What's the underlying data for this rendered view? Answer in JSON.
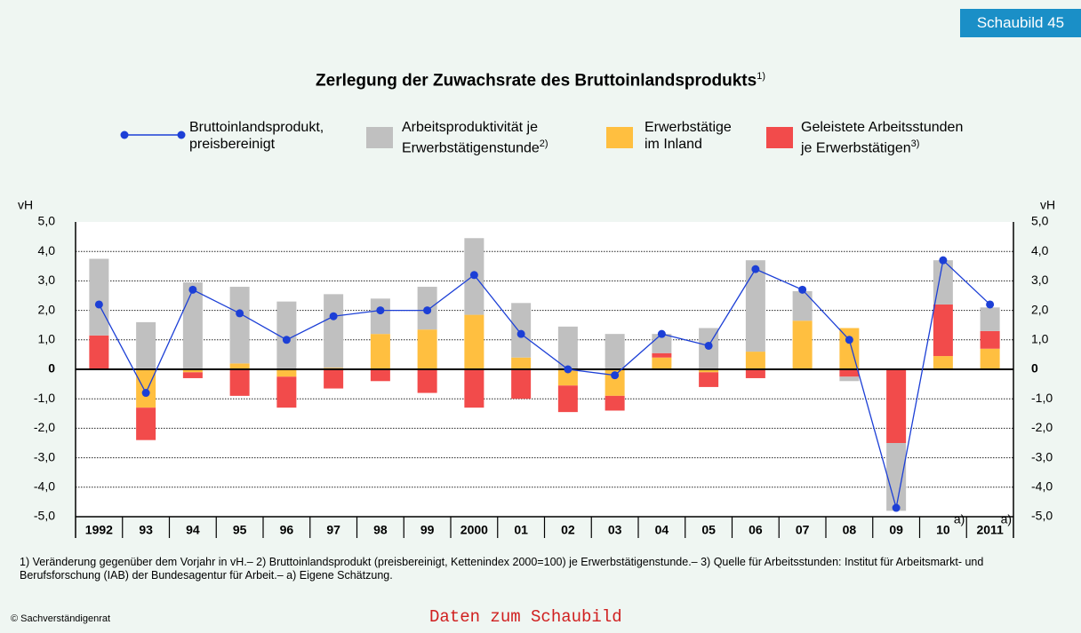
{
  "chart_data": {
    "type": "bar",
    "badge": "Schaubild 45",
    "title": "Zerlegung der Zuwachsrate des Bruttoinlandsprodukts",
    "title_note": "1)",
    "y_label": "vH",
    "categories": [
      "1992",
      "93",
      "94",
      "95",
      "96",
      "97",
      "98",
      "99",
      "2000",
      "01",
      "02",
      "03",
      "04",
      "05",
      "06",
      "07",
      "08",
      "09",
      "10",
      "2011"
    ],
    "category_notes": [
      null,
      null,
      null,
      null,
      null,
      null,
      null,
      null,
      null,
      null,
      null,
      null,
      null,
      null,
      null,
      null,
      null,
      null,
      "a)",
      "a)"
    ],
    "series": [
      {
        "name": "Bruttoinlandsprodukt,\npreisbereinigt",
        "type": "line",
        "color": "#1c3fd6",
        "values": [
          2.2,
          -0.8,
          2.7,
          1.9,
          1.0,
          1.8,
          2.0,
          2.0,
          3.2,
          1.2,
          0.0,
          -0.2,
          1.2,
          0.8,
          3.4,
          2.7,
          1.0,
          -4.7,
          3.7,
          2.2
        ]
      },
      {
        "name": "Arbeitsproduktivität je\nErwerbstätigenstunde",
        "note": "2)",
        "type": "bar",
        "color": "#c0c0c0",
        "values": [
          2.6,
          1.6,
          2.95,
          2.6,
          2.3,
          2.5,
          1.2,
          1.45,
          2.6,
          1.85,
          1.45,
          1.2,
          0.65,
          1.4,
          3.1,
          1.0,
          -0.15,
          -2.3,
          1.5,
          0.8
        ]
      },
      {
        "name": "Erwerbstätige\nim Inland",
        "type": "bar",
        "color": "#ffbf40",
        "values": [
          0.0,
          -1.3,
          -0.1,
          0.2,
          -0.25,
          0.05,
          1.2,
          1.35,
          1.85,
          0.4,
          -0.55,
          -0.9,
          0.4,
          -0.1,
          0.6,
          1.65,
          1.4,
          0.0,
          0.45,
          0.7
        ]
      },
      {
        "name": "Geleistete Arbeitsstunden\nje Erwerbstätigen",
        "note": "3)",
        "type": "bar",
        "color": "#f24b4b",
        "values": [
          1.15,
          -1.1,
          -0.2,
          -0.9,
          -1.05,
          -0.65,
          -0.4,
          -0.8,
          -1.3,
          -1.0,
          -0.9,
          -0.5,
          0.15,
          -0.5,
          -0.3,
          0.0,
          -0.25,
          -2.5,
          1.75,
          0.6
        ]
      }
    ],
    "ylim": [
      -5,
      5
    ],
    "yticks": [
      {
        "value": -5,
        "label": "-5,0"
      },
      {
        "value": -4,
        "label": "-4,0"
      },
      {
        "value": -3,
        "label": "-3,0"
      },
      {
        "value": -2,
        "label": "-2,0"
      },
      {
        "value": -1,
        "label": "-1,0"
      },
      0,
      {
        "value": 1,
        "label": "1,0"
      },
      {
        "value": 2,
        "label": "2,0"
      },
      {
        "value": 3,
        "label": "3,0"
      },
      {
        "value": 4,
        "label": "4,0"
      },
      {
        "value": 5,
        "label": "5,0"
      }
    ],
    "grid": true,
    "footnote": "1) Veränderung gegenüber dem Vorjahr in vH.– 2) Bruttoinlandsprodukt (preisbereinigt, Kettenindex 2000=100) je Erwerbstätigenstunde.– 3) Quelle für Arbeitsstunden: Institut für Arbeitsmarkt- und Berufsforschung (IAB) der Bundesagentur für Arbeit.– a) Eigene Schätzung.",
    "copyright": "© Sachverständigenrat",
    "link": "Daten zum Schaubild"
  }
}
